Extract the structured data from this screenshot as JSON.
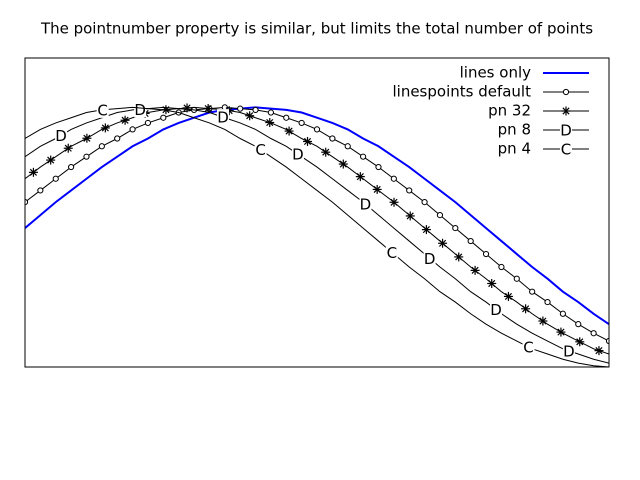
{
  "chart_data": {
    "type": "line",
    "title": "The pointnumber property is similar, but limits the total number of points",
    "x": [
      0,
      0.1,
      0.2,
      0.3,
      0.4,
      0.5,
      0.6,
      0.7,
      0.8,
      0.9,
      1.0,
      1.1,
      1.2,
      1.3,
      1.4,
      1.5,
      1.6,
      1.7,
      1.8,
      1.9,
      2.0,
      2.1,
      2.2,
      2.3,
      2.4,
      2.5,
      2.6,
      2.7,
      2.8,
      2.9,
      3.0,
      3.1,
      3.2,
      3.3,
      3.4,
      3.5,
      3.6,
      3.7,
      3.8
    ],
    "xlim": [
      0,
      3.8
    ],
    "ylim": [
      -1.0,
      1.38
    ],
    "legend": "top right",
    "series": [
      {
        "name": "lines only",
        "color": "#0000ff",
        "line_width": 2,
        "point": null,
        "values": [
          0.07,
          0.17,
          0.27,
          0.36,
          0.45,
          0.54,
          0.62,
          0.7,
          0.76,
          0.83,
          0.88,
          0.92,
          0.96,
          0.98,
          0.99,
          1.0,
          0.99,
          0.98,
          0.96,
          0.92,
          0.88,
          0.83,
          0.76,
          0.7,
          0.62,
          0.54,
          0.45,
          0.36,
          0.27,
          0.17,
          0.07,
          -0.03,
          -0.13,
          -0.23,
          -0.32,
          -0.42,
          -0.5,
          -0.59,
          -0.67
        ]
      },
      {
        "name": "linespoints default",
        "color": "#000000",
        "line_width": 1,
        "point": "circle",
        "values": [
          0.27,
          0.36,
          0.45,
          0.54,
          0.62,
          0.7,
          0.76,
          0.83,
          0.88,
          0.92,
          0.96,
          0.98,
          0.99,
          1.0,
          0.99,
          0.98,
          0.96,
          0.92,
          0.88,
          0.83,
          0.76,
          0.7,
          0.62,
          0.54,
          0.45,
          0.36,
          0.27,
          0.17,
          0.07,
          -0.03,
          -0.13,
          -0.23,
          -0.32,
          -0.42,
          -0.5,
          -0.59,
          -0.67,
          -0.74,
          -0.8
        ]
      },
      {
        "name": "pn 32",
        "color": "#000000",
        "line_width": 1,
        "point": "asterisk",
        "pointnumber": 32,
        "values": [
          0.45,
          0.54,
          0.62,
          0.7,
          0.76,
          0.83,
          0.88,
          0.92,
          0.96,
          0.98,
          0.99,
          1.0,
          0.99,
          0.98,
          0.96,
          0.92,
          0.88,
          0.83,
          0.76,
          0.7,
          0.62,
          0.54,
          0.45,
          0.36,
          0.27,
          0.17,
          0.07,
          -0.03,
          -0.13,
          -0.23,
          -0.32,
          -0.42,
          -0.5,
          -0.59,
          -0.67,
          -0.74,
          -0.8,
          -0.86,
          -0.9
        ]
      },
      {
        "name": "pn 8",
        "color": "#000000",
        "line_width": 1,
        "point": "D",
        "pointnumber": 8,
        "values": [
          0.62,
          0.7,
          0.76,
          0.83,
          0.88,
          0.92,
          0.96,
          0.98,
          0.99,
          1.0,
          0.99,
          0.98,
          0.96,
          0.92,
          0.88,
          0.83,
          0.76,
          0.7,
          0.62,
          0.54,
          0.45,
          0.36,
          0.27,
          0.17,
          0.07,
          -0.03,
          -0.13,
          -0.23,
          -0.32,
          -0.42,
          -0.5,
          -0.59,
          -0.67,
          -0.74,
          -0.8,
          -0.86,
          -0.9,
          -0.94,
          -0.97
        ]
      },
      {
        "name": "pn 4",
        "color": "#000000",
        "line_width": 1,
        "point": "C",
        "pointnumber": 4,
        "values": [
          0.76,
          0.83,
          0.88,
          0.92,
          0.96,
          0.98,
          0.99,
          1.0,
          0.99,
          0.98,
          0.96,
          0.92,
          0.88,
          0.83,
          0.76,
          0.7,
          0.62,
          0.54,
          0.45,
          0.36,
          0.27,
          0.17,
          0.07,
          -0.03,
          -0.13,
          -0.23,
          -0.32,
          -0.42,
          -0.5,
          -0.59,
          -0.67,
          -0.74,
          -0.8,
          -0.86,
          -0.9,
          -0.94,
          -0.97,
          -0.99,
          -1.0
        ]
      }
    ]
  }
}
